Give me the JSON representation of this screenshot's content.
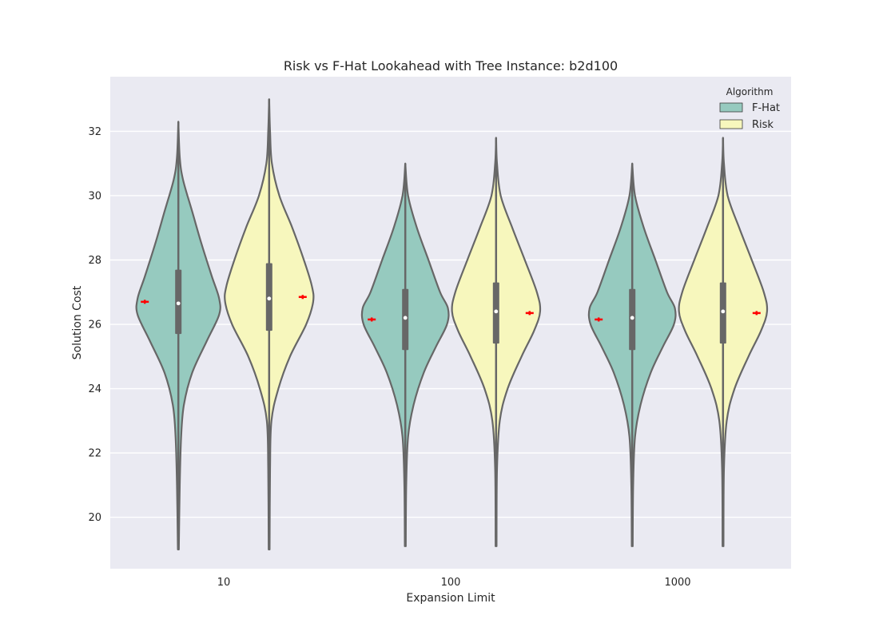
{
  "chart_data": {
    "type": "violin",
    "title": "Risk vs F-Hat Lookahead with Tree Instance: b2d100",
    "xlabel": "Expansion Limit",
    "ylabel": "Solution Cost",
    "categories": [
      "10",
      "100",
      "1000"
    ],
    "ylim": [
      18.4,
      33.7
    ],
    "yticks": [
      20,
      22,
      24,
      26,
      28,
      30,
      32
    ],
    "grid": true,
    "legend": {
      "title": "Algorithm",
      "placement": "top-right"
    },
    "series": [
      {
        "name": "F-Hat",
        "color": "#96cabf",
        "stats": [
          {
            "category": "10",
            "min": 19.0,
            "q1": 25.7,
            "median": 26.65,
            "q3": 27.7,
            "max": 32.3,
            "mean": 26.7,
            "density": [
              [
                19.0,
                0.01
              ],
              [
                21.0,
                0.03
              ],
              [
                22.5,
                0.06
              ],
              [
                23.5,
                0.12
              ],
              [
                24.5,
                0.3
              ],
              [
                25.5,
                0.62
              ],
              [
                26.3,
                0.88
              ],
              [
                26.8,
                0.88
              ],
              [
                27.5,
                0.72
              ],
              [
                28.5,
                0.5
              ],
              [
                29.5,
                0.3
              ],
              [
                30.5,
                0.1
              ],
              [
                31.2,
                0.03
              ],
              [
                32.3,
                0.0
              ]
            ]
          },
          {
            "category": "100",
            "min": 19.1,
            "q1": 25.2,
            "median": 26.2,
            "q3": 27.1,
            "max": 31.0,
            "mean": 26.15,
            "density": [
              [
                19.1,
                0.01
              ],
              [
                21.0,
                0.02
              ],
              [
                22.5,
                0.06
              ],
              [
                23.5,
                0.18
              ],
              [
                24.5,
                0.4
              ],
              [
                25.3,
                0.66
              ],
              [
                26.0,
                0.9
              ],
              [
                26.5,
                0.92
              ],
              [
                27.0,
                0.75
              ],
              [
                28.0,
                0.5
              ],
              [
                29.0,
                0.25
              ],
              [
                30.0,
                0.06
              ],
              [
                31.0,
                0.0
              ]
            ]
          },
          {
            "category": "1000",
            "min": 19.1,
            "q1": 25.2,
            "median": 26.2,
            "q3": 27.1,
            "max": 31.0,
            "mean": 26.15,
            "density": [
              [
                19.1,
                0.01
              ],
              [
                21.0,
                0.02
              ],
              [
                22.5,
                0.06
              ],
              [
                23.5,
                0.18
              ],
              [
                24.5,
                0.4
              ],
              [
                25.3,
                0.66
              ],
              [
                26.0,
                0.9
              ],
              [
                26.5,
                0.92
              ],
              [
                27.0,
                0.75
              ],
              [
                28.0,
                0.5
              ],
              [
                29.0,
                0.25
              ],
              [
                30.0,
                0.06
              ],
              [
                31.0,
                0.0
              ]
            ]
          }
        ]
      },
      {
        "name": "Risk",
        "color": "#f7f7bd",
        "stats": [
          {
            "category": "10",
            "min": 19.0,
            "q1": 25.8,
            "median": 26.8,
            "q3": 27.9,
            "max": 33.0,
            "mean": 26.85,
            "density": [
              [
                19.0,
                0.01
              ],
              [
                21.5,
                0.02
              ],
              [
                23.0,
                0.05
              ],
              [
                24.0,
                0.2
              ],
              [
                25.0,
                0.45
              ],
              [
                26.0,
                0.8
              ],
              [
                26.7,
                0.95
              ],
              [
                27.2,
                0.92
              ],
              [
                28.0,
                0.75
              ],
              [
                29.0,
                0.5
              ],
              [
                30.0,
                0.22
              ],
              [
                31.0,
                0.06
              ],
              [
                32.0,
                0.02
              ],
              [
                33.0,
                0.0
              ]
            ]
          },
          {
            "category": "100",
            "min": 19.1,
            "q1": 25.4,
            "median": 26.4,
            "q3": 27.3,
            "max": 31.8,
            "mean": 26.35,
            "density": [
              [
                19.1,
                0.01
              ],
              [
                21.5,
                0.02
              ],
              [
                23.0,
                0.08
              ],
              [
                24.0,
                0.25
              ],
              [
                25.0,
                0.55
              ],
              [
                25.8,
                0.82
              ],
              [
                26.4,
                0.95
              ],
              [
                27.0,
                0.88
              ],
              [
                28.0,
                0.62
              ],
              [
                29.0,
                0.35
              ],
              [
                30.0,
                0.1
              ],
              [
                31.0,
                0.02
              ],
              [
                31.8,
                0.0
              ]
            ]
          },
          {
            "category": "1000",
            "min": 19.1,
            "q1": 25.4,
            "median": 26.4,
            "q3": 27.3,
            "max": 31.8,
            "mean": 26.35,
            "density": [
              [
                19.1,
                0.01
              ],
              [
                21.5,
                0.02
              ],
              [
                23.0,
                0.08
              ],
              [
                24.0,
                0.25
              ],
              [
                25.0,
                0.55
              ],
              [
                25.8,
                0.82
              ],
              [
                26.4,
                0.95
              ],
              [
                27.0,
                0.88
              ],
              [
                28.0,
                0.62
              ],
              [
                29.0,
                0.35
              ],
              [
                30.0,
                0.1
              ],
              [
                31.0,
                0.02
              ],
              [
                31.8,
                0.0
              ]
            ]
          }
        ]
      }
    ],
    "mean_marker_color": "#ff0000"
  }
}
